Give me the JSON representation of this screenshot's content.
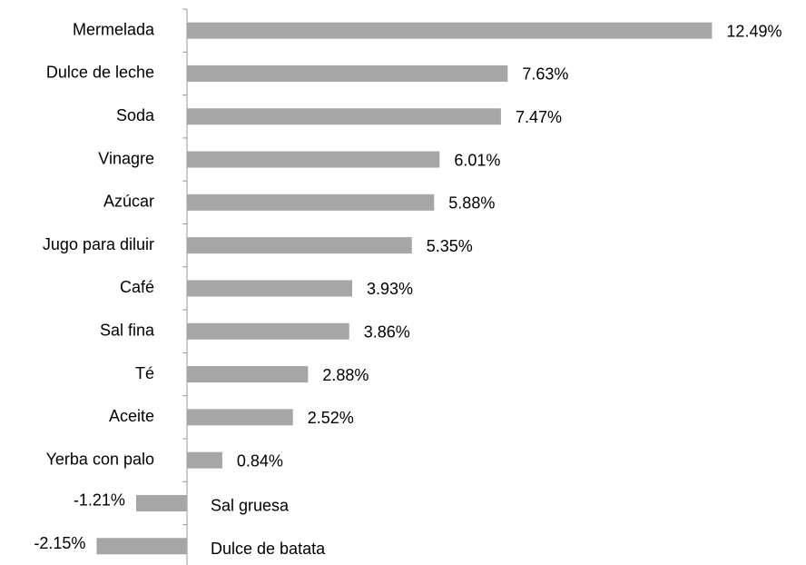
{
  "chart_data": {
    "type": "bar",
    "orientation": "horizontal",
    "categories": [
      "Mermelada",
      "Dulce de leche",
      "Soda",
      "Vinagre",
      "Azúcar",
      "Jugo para diluir",
      "Café",
      "Sal fina",
      "Té",
      "Aceite",
      "Yerba con palo",
      "Sal gruesa",
      "Dulce de batata"
    ],
    "values": [
      12.49,
      7.63,
      7.47,
      6.01,
      5.88,
      5.35,
      3.93,
      3.86,
      2.88,
      2.52,
      0.84,
      -1.21,
      -2.15
    ],
    "value_labels": [
      "12.49%",
      "7.63%",
      "7.47%",
      "6.01%",
      "5.88%",
      "5.35%",
      "3.93%",
      "3.86%",
      "2.88%",
      "2.52%",
      "0.84%",
      "-1.21%",
      "-2.15%"
    ],
    "color": "#a6a6a6"
  }
}
